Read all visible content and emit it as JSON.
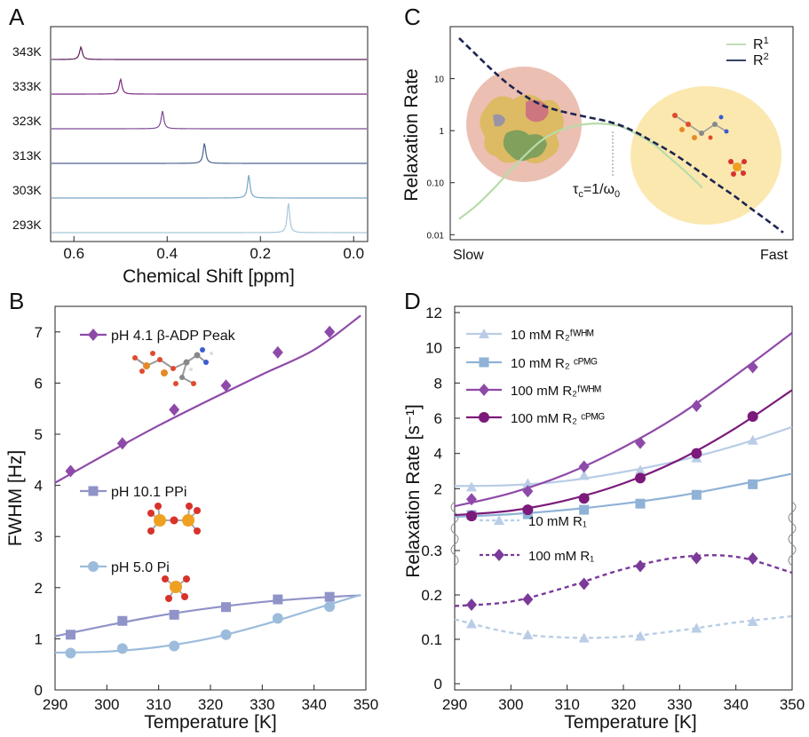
{
  "colors": {
    "purple": "#8e4aa8",
    "dark_purple": "#7b1a7a",
    "lavender": "#8f93c8",
    "light_blue": "#9cbcdc",
    "pale_blue": "#b9cde6",
    "navy": "#1c2450",
    "green": "#b8dca8",
    "salmon": "#e8b4a4",
    "cream": "#fbe6a6"
  },
  "chart_data": [
    {
      "panel": "A",
      "type": "line",
      "xlabel": "Chemical Shift [ppm]",
      "xlim": [
        0.65,
        -0.03
      ],
      "xticks": [
        "0.6",
        "0.4",
        "0.2",
        "0.0"
      ],
      "xtick_values": [
        0.6,
        0.4,
        0.2,
        0.0
      ],
      "series": [
        {
          "name": "343K",
          "peak_ppm": 0.585,
          "color": "#5b1d5b"
        },
        {
          "name": "333K",
          "peak_ppm": 0.5,
          "color": "#7a2a80"
        },
        {
          "name": "323K",
          "peak_ppm": 0.41,
          "color": "#7b4a95"
        },
        {
          "name": "313K",
          "peak_ppm": 0.32,
          "color": "#4d6290"
        },
        {
          "name": "303K",
          "peak_ppm": 0.225,
          "color": "#7aa6c4"
        },
        {
          "name": "293K",
          "peak_ppm": 0.14,
          "color": "#a8c8dc"
        }
      ]
    },
    {
      "panel": "B",
      "type": "scatter",
      "xlabel": "Temperature [K]",
      "ylabel": "FWHM [Hz]",
      "xlim": [
        290,
        350
      ],
      "ylim": [
        0,
        7.5
      ],
      "xticks": [
        "290",
        "300",
        "310",
        "320",
        "330",
        "340",
        "350"
      ],
      "yticks": [
        "0",
        "1",
        "2",
        "3",
        "4",
        "5",
        "6",
        "7"
      ],
      "x": [
        293,
        303,
        313,
        323,
        333,
        343
      ],
      "series": [
        {
          "name": "pH 4.1 β-ADP Peak",
          "marker": "diamond",
          "color": "#8e4aa8",
          "values": [
            4.28,
            4.82,
            5.48,
            5.95,
            6.6,
            7.0
          ],
          "fit_x": [
            290,
            300,
            310,
            320,
            330,
            340,
            349
          ],
          "fit_y": [
            4.05,
            4.62,
            5.17,
            5.68,
            6.17,
            6.65,
            7.32
          ]
        },
        {
          "name": "pH 10.1 PPi",
          "marker": "square",
          "color": "#8f93c8",
          "values": [
            1.08,
            1.35,
            1.47,
            1.62,
            1.77,
            1.82
          ],
          "fit_x": [
            290,
            300,
            310,
            320,
            330,
            340,
            349
          ],
          "fit_y": [
            1.05,
            1.26,
            1.45,
            1.6,
            1.72,
            1.8,
            1.85
          ]
        },
        {
          "name": "pH 5.0 Pi",
          "marker": "circle",
          "color": "#9cbcdc",
          "values": [
            0.72,
            0.81,
            0.86,
            1.08,
            1.4,
            1.63
          ],
          "fit_x": [
            290,
            300,
            310,
            320,
            330,
            340,
            349
          ],
          "fit_y": [
            0.73,
            0.75,
            0.84,
            1.01,
            1.27,
            1.58,
            1.86
          ]
        }
      ]
    },
    {
      "panel": "C",
      "type": "line",
      "ylabel": "Relaxation Rate",
      "xticks": [
        "Slow",
        "Fast"
      ],
      "yscale": "log",
      "ylim": [
        0.008,
        100
      ],
      "yticks": [
        "10",
        "1",
        "0.10",
        "0.01"
      ],
      "ytick_values": [
        10,
        1,
        0.1,
        0.01
      ],
      "annotation": "τc=1/ω0",
      "series": [
        {
          "name": "R1",
          "color": "#b8dca8",
          "style": "solid",
          "x": [
            0,
            0.05,
            0.1,
            0.15,
            0.2,
            0.25,
            0.3,
            0.35,
            0.4,
            0.45,
            0.5,
            0.55,
            0.6,
            0.65,
            0.7,
            0.75
          ],
          "values": [
            0.02,
            0.035,
            0.07,
            0.15,
            0.32,
            0.62,
            0.95,
            1.2,
            1.35,
            1.35,
            1.2,
            0.85,
            0.55,
            0.3,
            0.16,
            0.08
          ]
        },
        {
          "name": "R2",
          "color": "#1c2450",
          "style": "dashed",
          "x": [
            0,
            0.05,
            0.1,
            0.15,
            0.2,
            0.25,
            0.3,
            0.35,
            0.4,
            0.45,
            0.5,
            0.55,
            0.6,
            0.65,
            0.7,
            0.75,
            0.8,
            0.85,
            0.9,
            0.95,
            1.0
          ],
          "values": [
            60,
            30,
            15,
            8,
            4.8,
            3.2,
            2.5,
            2.1,
            1.8,
            1.55,
            1.25,
            0.9,
            0.6,
            0.4,
            0.25,
            0.15,
            0.09,
            0.055,
            0.032,
            0.019,
            0.011
          ]
        }
      ]
    },
    {
      "panel": "D",
      "type": "scatter",
      "xlabel": "Temperature [K]",
      "ylabel": "Relaxation Rate [s⁻¹]",
      "xlim": [
        290,
        350
      ],
      "xticks": [
        "290",
        "300",
        "310",
        "320",
        "330",
        "340",
        "350"
      ],
      "upper_ylim": [
        0,
        12
      ],
      "upper_yticks": [
        "2",
        "4",
        "6",
        "8",
        "10",
        "12"
      ],
      "lower_ylim": [
        0,
        0.35
      ],
      "lower_yticks": [
        "0",
        "0.1",
        "0.2",
        "0.3"
      ],
      "x": [
        293,
        303,
        313,
        323,
        333,
        343
      ],
      "upper_series": [
        {
          "name": "10 mM R₂ᶠᵂᴴᴹ",
          "marker": "triangle",
          "color": "#b9cde6",
          "values": [
            2.1,
            2.3,
            2.75,
            3.05,
            3.75,
            4.75
          ],
          "fit_x": [
            290,
            300,
            310,
            320,
            330,
            340,
            350
          ],
          "fit_y": [
            2.15,
            2.2,
            2.45,
            2.95,
            3.6,
            4.45,
            5.5
          ]
        },
        {
          "name": "10 mM R₂ ᶜᴾᴹᴳ",
          "marker": "square",
          "color": "#8fb2d6",
          "values": [
            0.5,
            0.55,
            0.8,
            1.15,
            1.65,
            2.25
          ],
          "fit_x": [
            290,
            300,
            310,
            320,
            330,
            340,
            350
          ],
          "fit_y": [
            0.4,
            0.55,
            0.8,
            1.15,
            1.6,
            2.2,
            2.85
          ]
        },
        {
          "name": "100 mM R₂ᶠᵂᴴᴹ",
          "marker": "diamond",
          "color": "#8e4aa8",
          "values": [
            1.4,
            1.85,
            3.25,
            4.6,
            6.7,
            8.9
          ],
          "fit_x": [
            290,
            300,
            310,
            320,
            330,
            340,
            350
          ],
          "fit_y": [
            1.0,
            1.75,
            2.85,
            4.35,
            6.2,
            8.45,
            10.85
          ]
        },
        {
          "name": "100 mM R₂ ᶜᴾᴹᴳ",
          "marker": "circle",
          "color": "#7b1a7a",
          "values": [
            0.45,
            0.8,
            1.45,
            2.6,
            4.0,
            6.1
          ],
          "fit_x": [
            290,
            300,
            310,
            320,
            330,
            340,
            350
          ],
          "fit_y": [
            0.5,
            0.75,
            1.35,
            2.3,
            3.65,
            5.45,
            7.6
          ]
        }
      ],
      "lower_series": [
        {
          "name": "10 mM R₁",
          "marker": "triangle",
          "color": "#b9cde6",
          "style": "dashed",
          "values": [
            0.135,
            0.11,
            0.103,
            0.107,
            0.125,
            0.14
          ],
          "fit_x": [
            290,
            300,
            310,
            320,
            330,
            340,
            350
          ],
          "fit_y": [
            0.145,
            0.115,
            0.104,
            0.106,
            0.12,
            0.138,
            0.152
          ]
        },
        {
          "name": "100 mM R₁",
          "marker": "diamond",
          "color": "#7b3a9a",
          "style": "dashed",
          "values": [
            0.178,
            0.19,
            0.225,
            0.265,
            0.283,
            0.282
          ],
          "fit_x": [
            290,
            300,
            310,
            320,
            330,
            340,
            350
          ],
          "fit_y": [
            0.175,
            0.185,
            0.218,
            0.258,
            0.285,
            0.286,
            0.25
          ]
        }
      ]
    }
  ]
}
